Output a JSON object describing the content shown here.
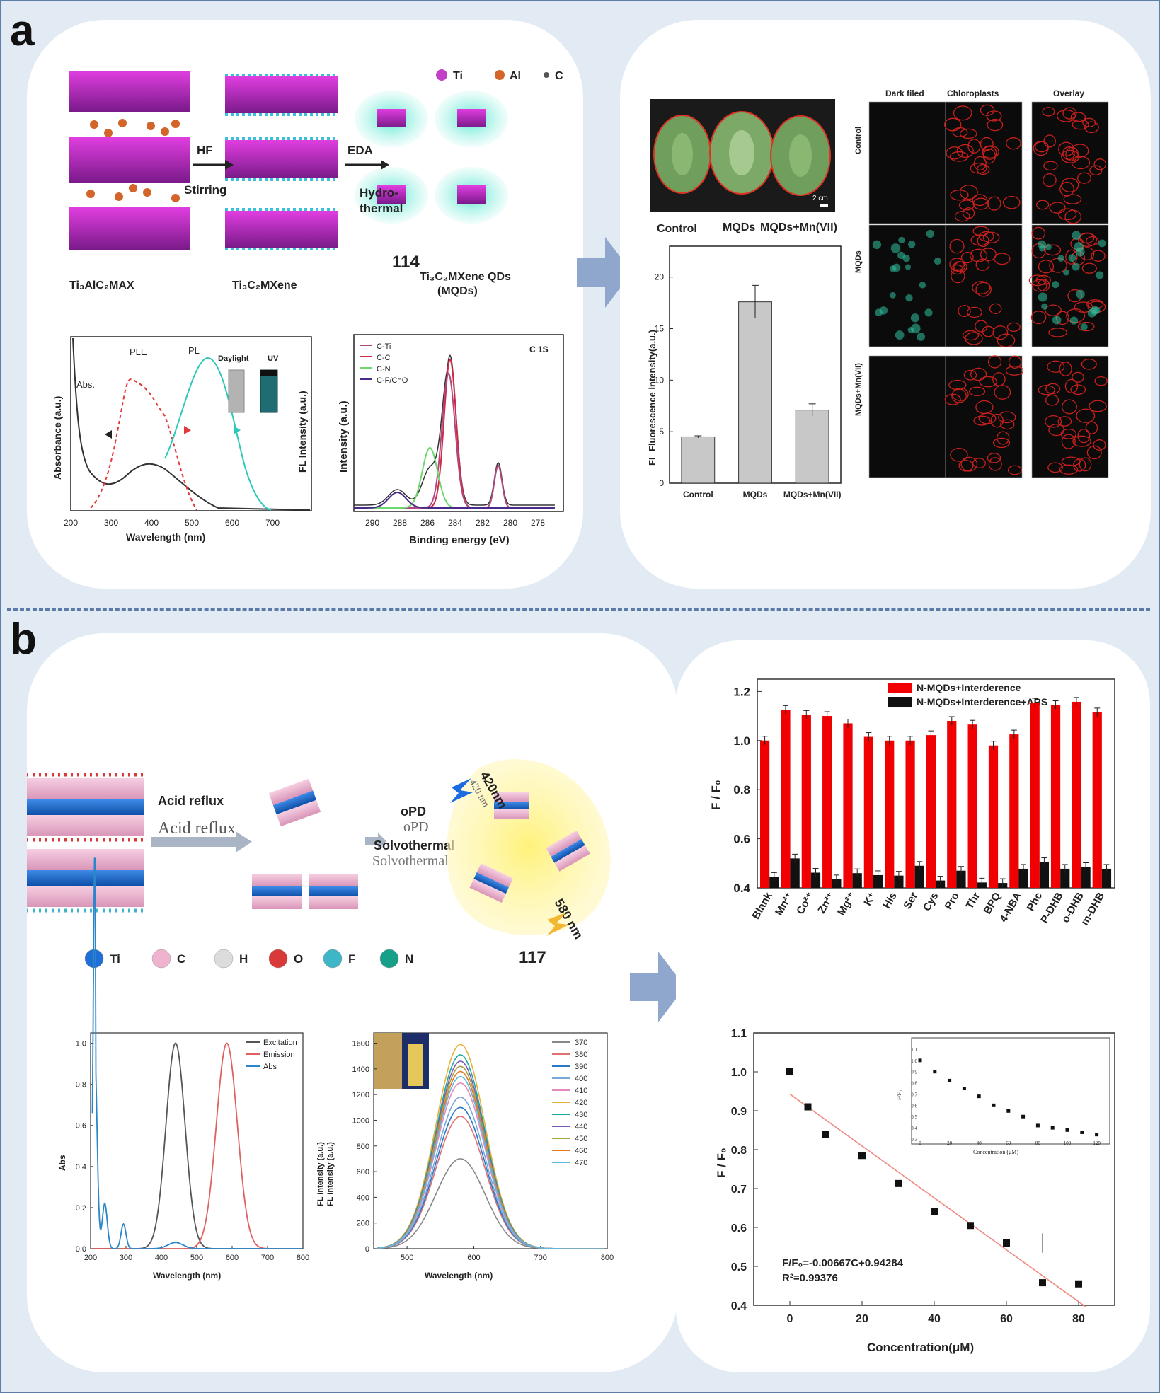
{
  "panel_labels": {
    "a": "a",
    "b": "b"
  },
  "a_synthesis": {
    "legend": [
      "Ti",
      "Al",
      "C"
    ],
    "step1_top": "HF",
    "step1_bottom": "Stirring",
    "step2_top": "EDA",
    "step2_bottom_1": "Hydro-",
    "step2_bottom_2": "thermal",
    "compound_number": "114",
    "label_max": "Ti₃AlC₂MAX",
    "label_mxene": "Ti₃C₂MXene",
    "label_qds_1": "Ti₃C₂MXene QDs",
    "label_qds_2": "(MQDs)"
  },
  "a_spectra": {
    "ylabel_left": "Absorbance (a.u.)",
    "ylabel_right": "FL Intensity (a.u.)",
    "xlabel": "Wavelength (nm)",
    "xticks": [
      "200",
      "300",
      "400",
      "500",
      "600",
      "700"
    ],
    "abs_label": "Abs.",
    "ple_label": "PLE",
    "pl_label": "PL",
    "daylight": "Daylight",
    "uv": "UV"
  },
  "a_xps": {
    "ylabel": "Intensity (a.u.)",
    "xlabel": "Binding energy (eV)",
    "xticks": [
      "290",
      "288",
      "286",
      "284",
      "282",
      "280",
      "278"
    ],
    "title": "C 1S",
    "legend": [
      "C-Ti",
      "C-C",
      "C-N",
      "C-F/C=O"
    ],
    "colors": {
      "cti": "#b0487e",
      "cc": "#d02a4a",
      "cn": "#6dd86d",
      "cf": "#4a2a88",
      "env": "#333333"
    }
  },
  "a_plants": {
    "labels": [
      "Control",
      "MQDs",
      "MQDs+Mn(VII)"
    ],
    "scale": "2 cm"
  },
  "a_bar": {
    "ylabel": "Fluorescence intensity(a.u.)",
    "yprefix": "FI",
    "chart_data": {
      "type": "bar",
      "categories": [
        "Control",
        "MQDs",
        "MQDs+Mn(VII)"
      ],
      "values": [
        4.5,
        17.6,
        7.1
      ],
      "errors": [
        0.1,
        1.6,
        0.6
      ],
      "yticks": [
        0,
        5,
        10,
        15,
        20
      ],
      "ylim": [
        0,
        23
      ]
    }
  },
  "a_micro": {
    "cols": [
      "Dark filed",
      "Chloroplasts",
      "Overlay"
    ],
    "rows": [
      "Control",
      "MQDs",
      "MQDs+Mn(VII)"
    ]
  },
  "b_synthesis": {
    "step1": "Acid reflux",
    "step1_ghost": "Acid reflux",
    "step2_1": "oPD",
    "step2_1_ghost": "oPD",
    "step2_2": "Solvothermal",
    "step2_2_ghost": "Solvothermal",
    "ex_label": "420nm",
    "ex_ghost": "420 nm",
    "em_label": "580 nm",
    "compound_number": "117",
    "legend": [
      "Ti",
      "C",
      "H",
      "O",
      "F",
      "N"
    ],
    "legend_colors": [
      "#1f6fd6",
      "#f0b3cf",
      "#dcdcdc",
      "#d83a3a",
      "#3fb6c8",
      "#16a08a"
    ]
  },
  "b_spectra1": {
    "ylabel": "Abs",
    "xlabel": "Wavelength (nm)",
    "xticks": [
      "200",
      "300",
      "400",
      "500",
      "600",
      "700",
      "800"
    ],
    "yticks": [
      "0.0",
      "0.2",
      "0.4",
      "0.6",
      "0.8",
      "1.0"
    ],
    "legend": [
      "Excitation",
      "Emission",
      "Abs"
    ],
    "colors": [
      "#555555",
      "#e0605e",
      "#2b86c9"
    ]
  },
  "b_spectra2": {
    "ylabel_1": "FL Intensity (a.u.)",
    "ylabel_2": "FL Intensity (a.u.)",
    "xlabel": "Wavelength (nm)",
    "xticks": [
      "500",
      "600",
      "700",
      "800"
    ],
    "yticks": [
      "0",
      "200",
      "400",
      "600",
      "800",
      "1000",
      "1200",
      "1400",
      "1600"
    ],
    "legend": [
      "370",
      "380",
      "390",
      "400",
      "410",
      "420",
      "430",
      "440",
      "450",
      "460",
      "470"
    ],
    "peaks": [
      700,
      1030,
      1100,
      1180,
      1290,
      1590,
      1510,
      1460,
      1420,
      1380,
      1340
    ],
    "colors": [
      "#888888",
      "#e07070",
      "#2a77c8",
      "#7aa8d8",
      "#e48ac0",
      "#e9b13a",
      "#1aa9a0",
      "#7b58b8",
      "#a3a340",
      "#e07a20",
      "#60b8e0"
    ]
  },
  "b_bar": {
    "ylabel": "F / F₀",
    "legend": [
      "N-MQDs+Interderence",
      "N-MQDs+Interderence+ARS"
    ],
    "colors": [
      "#f00000",
      "#111111"
    ],
    "chart_data": {
      "type": "bar",
      "categories": [
        "Blank",
        "Mn²⁺",
        "Co²⁺",
        "Zn²⁺",
        "Mg²⁺",
        "K⁺",
        "His",
        "Ser",
        "Cys",
        "Pro",
        "Thr",
        "BPQ",
        "4-NBA",
        "Phc",
        "P-DHB",
        "o-DHB",
        "m-DHB"
      ],
      "series": [
        {
          "name": "N-MQDs+Interderence",
          "values": [
            1.0,
            1.125,
            1.105,
            1.1,
            1.07,
            1.015,
            1.0,
            1.0,
            1.022,
            1.08,
            1.065,
            0.98,
            1.025,
            1.155,
            1.145,
            1.158,
            1.115
          ]
        },
        {
          "name": "N-MQDs+Interderence+ARS",
          "values": [
            0.445,
            0.52,
            0.462,
            0.435,
            0.46,
            0.452,
            0.45,
            0.49,
            0.43,
            0.47,
            0.422,
            0.42,
            0.478,
            0.505,
            0.478,
            0.485,
            0.478
          ]
        }
      ],
      "yticks": [
        "0.4",
        "0.6",
        "0.8",
        "1.0",
        "1.2"
      ],
      "ylim": [
        0.4,
        1.25
      ]
    }
  },
  "b_linear": {
    "ylabel": "F / F₀",
    "xlabel": "Concentration(μM)",
    "xticks": [
      "0",
      "20",
      "40",
      "60",
      "80"
    ],
    "yticks": [
      "0.4",
      "0.5",
      "0.6",
      "0.7",
      "0.8",
      "0.9",
      "1.0",
      "1.1"
    ],
    "equation": "F/F₀=-0.00667C+0.94284",
    "r2": "R²=0.99376",
    "chart_data": {
      "type": "scatter",
      "x": [
        0,
        5,
        10,
        20,
        30,
        40,
        50,
        60,
        70,
        80
      ],
      "y": [
        1.0,
        0.91,
        0.84,
        0.785,
        0.713,
        0.64,
        0.605,
        0.56,
        0.458,
        0.455
      ],
      "ylim": [
        0.4,
        1.1
      ],
      "xlim": [
        -10,
        90
      ]
    },
    "inset": {
      "xticks": [
        "0",
        "20",
        "40",
        "60",
        "80",
        "100",
        "120"
      ],
      "yticks": [
        "0.3",
        "0.4",
        "0.5",
        "0.6",
        "0.7",
        "0.8",
        "0.9",
        "1.0",
        "1.1"
      ],
      "xlabel": "Concentration (μM)",
      "ylabel": "F/F₀",
      "x": [
        0,
        10,
        20,
        30,
        40,
        50,
        60,
        70,
        80,
        90,
        100,
        110,
        120
      ],
      "y": [
        1.0,
        0.9,
        0.82,
        0.75,
        0.68,
        0.6,
        0.55,
        0.5,
        0.42,
        0.4,
        0.38,
        0.36,
        0.34
      ]
    }
  }
}
